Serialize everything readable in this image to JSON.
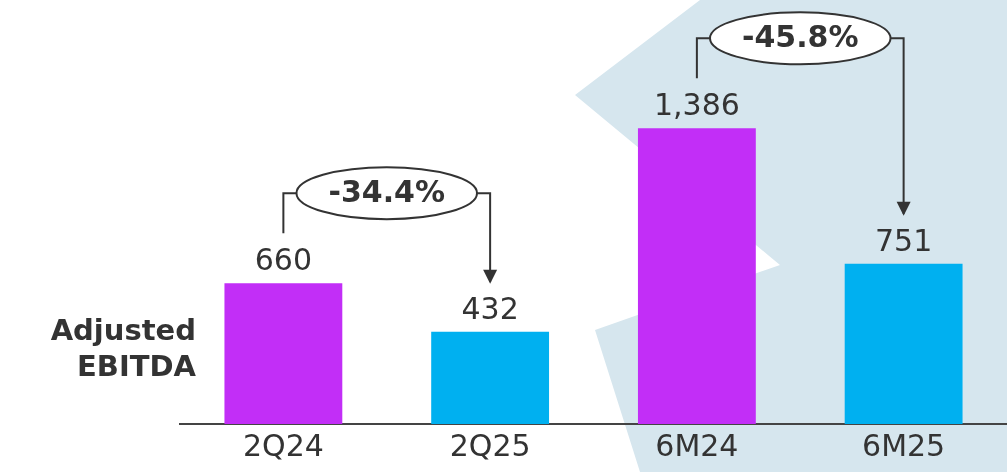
{
  "chart_data": {
    "type": "bar",
    "ylabel": "Adjusted EBITDA",
    "categories": [
      "2Q24",
      "2Q25",
      "6M24",
      "6M25"
    ],
    "values": [
      660,
      432,
      1386,
      751
    ],
    "colors": [
      "#c22ef7",
      "#00b0f0",
      "#c22ef7",
      "#00b0f0"
    ],
    "value_labels": [
      "660",
      "432",
      "1,386",
      "751"
    ],
    "annotations": [
      "-34.4%",
      "-45.8%"
    ],
    "legend": false,
    "grid": false
  }
}
